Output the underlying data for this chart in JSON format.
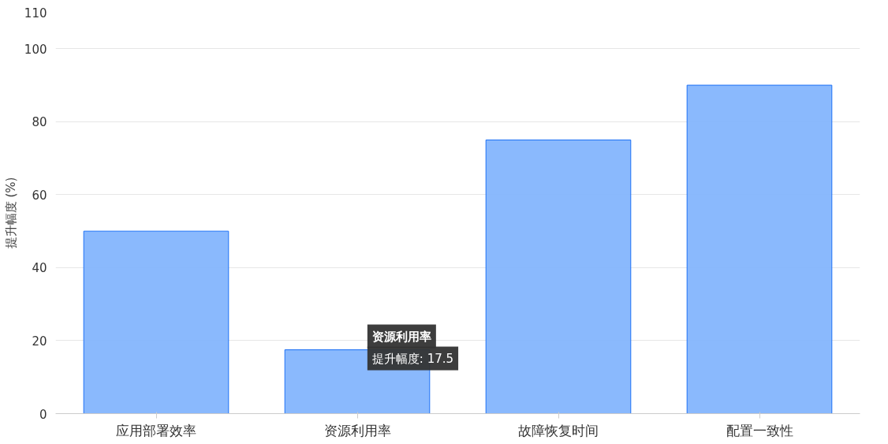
{
  "chart_data": {
    "type": "bar",
    "ylabel": "提升幅度 (%)",
    "categories": [
      "应用部署效率",
      "资源利用率",
      "故障恢复时间",
      "配置一致性"
    ],
    "series": [
      {
        "color": "#84b5fd",
        "values": [
          50,
          17.5,
          75,
          90
        ]
      }
    ],
    "ylim": [
      0,
      110
    ],
    "yticks": [
      0,
      20,
      40,
      60,
      80,
      100,
      110
    ],
    "grid": "y",
    "annotations": [
      {
        "text": "资源利用率",
        "x": "资源利用率",
        "y": 17.5
      },
      {
        "text": "提升幅度: 17.5",
        "x": "资源利用率",
        "y": 17.5
      }
    ]
  }
}
